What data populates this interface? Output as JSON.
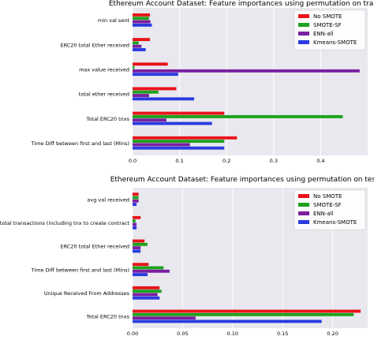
{
  "colors": {
    "No SMOTE": "#e8141b",
    "SMOTE-SF": "#1fa21f",
    "ENN-all": "#7b1fa0",
    "Kmeans-SMOTE": "#2a3be0",
    "plot_bg": "#e8e8ee",
    "grid": "#ffffff"
  },
  "chart_data": [
    {
      "type": "bar",
      "orientation": "horizontal",
      "title": "Ethereum Account Dataset: Feature importances using permutation on train set",
      "categories": [
        "min val sent",
        "ERC20 total Ether received",
        "max value received",
        "total ether received",
        "Total ERC20 tnxs",
        "Time Diff between first and last (Mins)"
      ],
      "series": [
        {
          "name": "No SMOTE",
          "values": [
            0.037,
            0.037,
            0.075,
            0.093,
            0.195,
            0.222
          ]
        },
        {
          "name": "SMOTE-SF",
          "values": [
            0.035,
            0.013,
            0.004,
            0.055,
            0.447,
            0.195
          ]
        },
        {
          "name": "ENN-all",
          "values": [
            0.038,
            0.019,
            0.483,
            0.035,
            0.072,
            0.122
          ]
        },
        {
          "name": "Kmeans-SMOTE",
          "values": [
            0.041,
            0.028,
            0.097,
            0.131,
            0.169,
            0.195
          ]
        }
      ],
      "xticks": [
        0,
        0.1,
        0.2,
        0.3,
        0.4
      ],
      "xtick_labels": [
        "0.0",
        "0.1",
        "0.2",
        "0.3",
        "0.4"
      ],
      "xlim": [
        0,
        0.5
      ],
      "legend_position": "top-right",
      "grid": true
    },
    {
      "type": "bar",
      "orientation": "horizontal",
      "title": "Ethereum Account Dataset: Feature importances using permutation on test set",
      "categories": [
        "avg val received",
        "total transactions (including tnx to create contract",
        "ERC20 total Ether received",
        "Time Diff between first and last (Mins)",
        "Unique Received From Addresses",
        "Total ERC20 tnxs"
      ],
      "series": [
        {
          "name": "No SMOTE",
          "values": [
            0.006,
            0.008,
            0.012,
            0.016,
            0.027,
            0.228
          ]
        },
        {
          "name": "SMOTE-SF",
          "values": [
            0.006,
            0.003,
            0.015,
            0.031,
            0.029,
            0.221
          ]
        },
        {
          "name": "ENN-all",
          "values": [
            0.006,
            0.004,
            0.008,
            0.037,
            0.025,
            0.063
          ]
        },
        {
          "name": "Kmeans-SMOTE",
          "values": [
            0.004,
            0.004,
            0.008,
            0.015,
            0.027,
            0.189
          ]
        }
      ],
      "xticks": [
        0,
        0.05,
        0.1,
        0.15,
        0.2
      ],
      "xtick_labels": [
        "0.00",
        "0.05",
        "0.10",
        "0.15",
        "0.20"
      ],
      "xlim": [
        0,
        0.235
      ],
      "legend_position": "top-right",
      "grid": true
    }
  ]
}
